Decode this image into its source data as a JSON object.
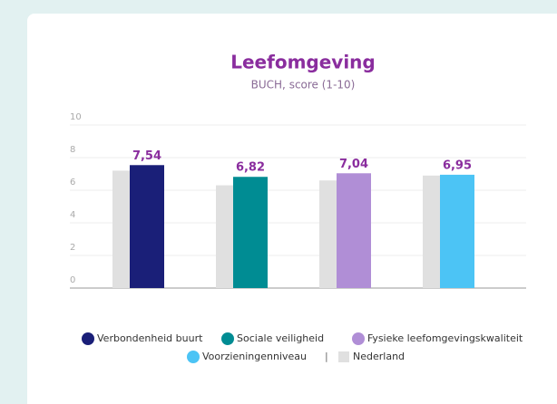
{
  "chart_data": {
    "type": "bar",
    "title": "Leefomgeving",
    "subtitle": "BUCH, score (1-10)",
    "categories": [
      "Verbondenheid buurt",
      "Sociale veiligheid",
      "Fysieke leefomgevingskwaliteit",
      "Voorzieningenniveau"
    ],
    "values": [
      7.54,
      6.82,
      7.04,
      6.95
    ],
    "value_labels": [
      "7,54",
      "6,82",
      "7,04",
      "6,95"
    ],
    "colors": [
      "#1a1f78",
      "#008c93",
      "#b08ed6",
      "#4cc4f5"
    ],
    "reference": {
      "name": "Nederland",
      "color": "#e0e0e0",
      "values": [
        7.2,
        6.3,
        6.6,
        6.9
      ]
    },
    "legend_separator": "|",
    "ylim": [
      0,
      10
    ],
    "yticks": [
      0,
      2,
      4,
      6,
      8,
      10
    ],
    "grid": true
  }
}
